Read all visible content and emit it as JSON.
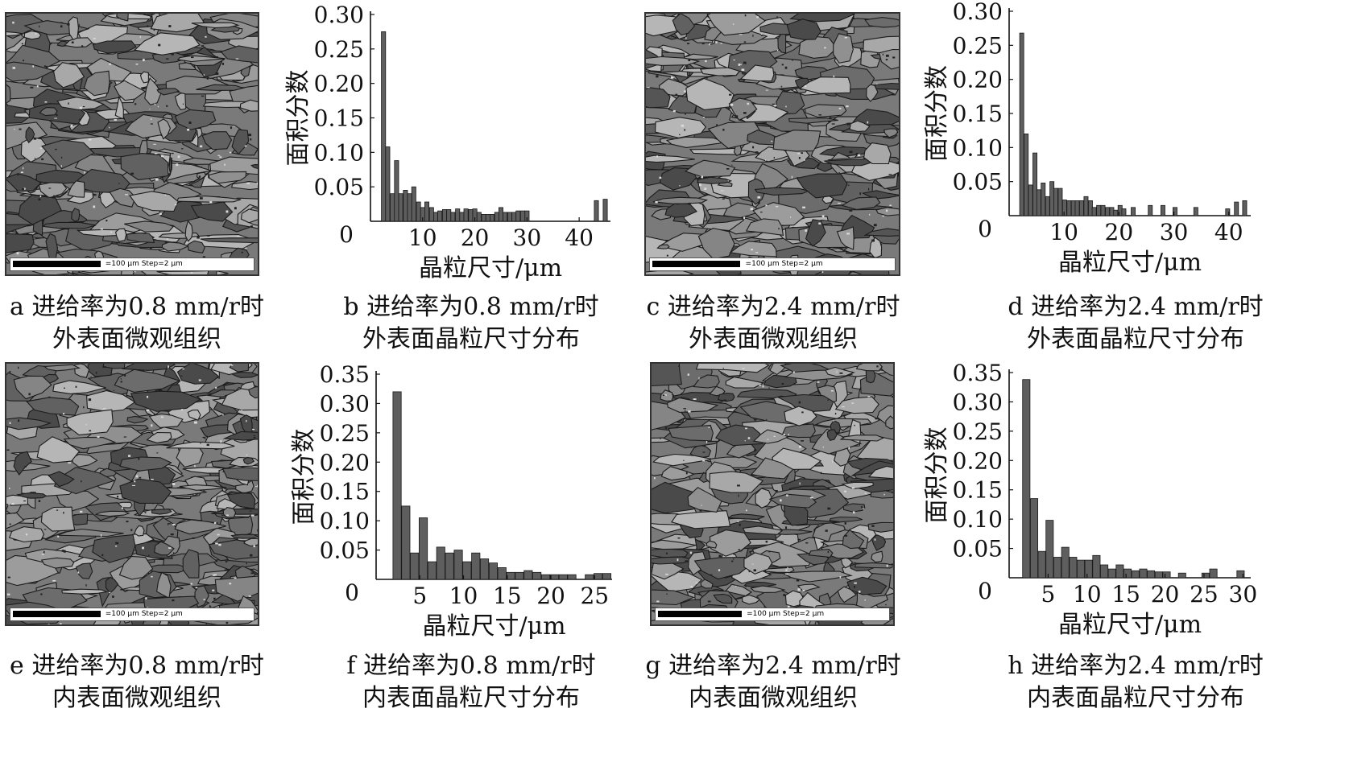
{
  "panels": [
    {
      "id": "a",
      "kind": "micro",
      "scale_text": "=100 μm Step=2 μm",
      "caption": [
        "a 进给率为0.8 mm/r时",
        "外表面微观组织"
      ]
    },
    {
      "id": "b",
      "kind": "chart",
      "caption": [
        "b 进给率为0.8 mm/r时",
        "外表面晶粒尺寸分布"
      ]
    },
    {
      "id": "c",
      "kind": "micro",
      "scale_text": "=100 μm Step=2 μm",
      "caption": [
        "c 进给率为2.4 mm/r时",
        "外表面微观组织"
      ]
    },
    {
      "id": "d",
      "kind": "chart",
      "caption": [
        "d 进给率为2.4 mm/r时",
        "外表面晶粒尺寸分布"
      ]
    },
    {
      "id": "e",
      "kind": "micro",
      "scale_text": "=100 μm Step=2 μm",
      "caption": [
        "e 进给率为0.8 mm/r时",
        "内表面微观组织"
      ]
    },
    {
      "id": "f",
      "kind": "chart",
      "caption": [
        "f 进给率为0.8 mm/r时",
        "内表面晶粒尺寸分布"
      ]
    },
    {
      "id": "g",
      "kind": "micro",
      "scale_text": "=100 μm Step=2 μm",
      "caption": [
        "g 进给率为2.4 mm/r时",
        "内表面微观组织"
      ]
    },
    {
      "id": "h",
      "kind": "chart",
      "caption": [
        "h 进给率为2.4 mm/r时",
        "内表面晶粒尺寸分布"
      ]
    }
  ],
  "chart_data": [
    {
      "id": "b",
      "type": "bar",
      "xlabel": "晶粒尺寸/μm",
      "ylabel": "面积分数",
      "xlim": [
        0,
        46
      ],
      "ylim": [
        0,
        0.3
      ],
      "xticks": [
        10,
        20,
        30,
        40
      ],
      "yticks": [
        0.05,
        0.1,
        0.15,
        0.2,
        0.25,
        0.3
      ],
      "origin_label": "0",
      "bin_width": 0.8,
      "x": [
        2.5,
        3.3,
        4.2,
        5.0,
        5.8,
        6.7,
        7.5,
        8.3,
        9.2,
        10.0,
        10.8,
        11.7,
        12.5,
        13.3,
        14.2,
        15.0,
        15.8,
        16.7,
        17.5,
        18.3,
        19.2,
        20.0,
        20.8,
        21.7,
        22.5,
        23.3,
        24.2,
        25.0,
        25.8,
        26.7,
        27.5,
        28.3,
        29.2,
        30.0,
        43.3,
        45.0
      ],
      "values": [
        0.275,
        0.108,
        0.04,
        0.088,
        0.04,
        0.045,
        0.04,
        0.05,
        0.028,
        0.02,
        0.028,
        0.02,
        0.013,
        0.015,
        0.017,
        0.017,
        0.013,
        0.018,
        0.013,
        0.018,
        0.017,
        0.018,
        0.013,
        0.01,
        0.01,
        0.01,
        0.013,
        0.02,
        0.013,
        0.013,
        0.013,
        0.015,
        0.015,
        0.015,
        0.03,
        0.032
      ]
    },
    {
      "id": "d",
      "type": "bar",
      "xlabel": "晶粒尺寸/μm",
      "ylabel": "面积分数",
      "xlim": [
        0,
        44
      ],
      "ylim": [
        0,
        0.3
      ],
      "xticks": [
        10,
        20,
        30,
        40
      ],
      "yticks": [
        0.05,
        0.1,
        0.15,
        0.2,
        0.25,
        0.3
      ],
      "origin_label": "0",
      "bin_width": 0.75,
      "x": [
        2.3,
        3.1,
        3.9,
        4.7,
        5.4,
        6.2,
        7.0,
        7.8,
        8.5,
        9.3,
        10.1,
        10.9,
        11.7,
        12.4,
        13.2,
        14.0,
        14.8,
        15.5,
        16.3,
        17.1,
        17.9,
        18.7,
        19.4,
        20.2,
        20.9,
        22.6,
        25.7,
        28.0,
        30.2,
        34.0,
        39.8,
        41.4,
        42.9
      ],
      "values": [
        0.268,
        0.12,
        0.045,
        0.092,
        0.038,
        0.048,
        0.028,
        0.05,
        0.04,
        0.04,
        0.023,
        0.022,
        0.022,
        0.022,
        0.022,
        0.028,
        0.022,
        0.012,
        0.015,
        0.015,
        0.012,
        0.012,
        0.008,
        0.015,
        0.01,
        0.012,
        0.015,
        0.015,
        0.012,
        0.012,
        0.01,
        0.02,
        0.022
      ]
    },
    {
      "id": "f",
      "type": "bar",
      "xlabel": "晶粒尺寸/μm",
      "ylabel": "面积分数",
      "xlim": [
        0,
        27
      ],
      "ylim": [
        0,
        0.35
      ],
      "xticks": [
        5,
        10,
        15,
        20,
        25
      ],
      "yticks": [
        0.05,
        0.1,
        0.15,
        0.2,
        0.25,
        0.3,
        0.35
      ],
      "origin_label": "0",
      "bin_width": 0.95,
      "x": [
        2.4,
        3.4,
        4.4,
        5.4,
        6.4,
        7.4,
        8.4,
        9.4,
        10.4,
        11.4,
        12.4,
        13.4,
        14.4,
        15.4,
        16.4,
        17.4,
        18.4,
        19.4,
        20.4,
        21.4,
        22.4,
        24.4,
        25.4,
        26.4
      ],
      "values": [
        0.32,
        0.125,
        0.045,
        0.105,
        0.03,
        0.055,
        0.045,
        0.05,
        0.03,
        0.045,
        0.035,
        0.028,
        0.02,
        0.012,
        0.012,
        0.015,
        0.012,
        0.008,
        0.008,
        0.008,
        0.008,
        0.008,
        0.01,
        0.01
      ]
    },
    {
      "id": "h",
      "type": "bar",
      "xlabel": "晶粒尺寸/μm",
      "ylabel": "面积分数",
      "xlim": [
        0,
        31
      ],
      "ylim": [
        0,
        0.35
      ],
      "xticks": [
        5,
        10,
        15,
        20,
        25,
        30
      ],
      "yticks": [
        0.05,
        0.1,
        0.15,
        0.2,
        0.25,
        0.3,
        0.35
      ],
      "origin_label": "0",
      "bin_width": 0.95,
      "x": [
        2.2,
        3.2,
        4.2,
        5.2,
        6.2,
        7.2,
        8.2,
        9.2,
        10.2,
        11.2,
        12.2,
        13.2,
        14.2,
        15.2,
        16.2,
        17.2,
        18.2,
        19.2,
        20.2,
        22.2,
        25.2,
        26.2,
        29.7
      ],
      "values": [
        0.338,
        0.135,
        0.045,
        0.098,
        0.035,
        0.052,
        0.035,
        0.03,
        0.03,
        0.038,
        0.022,
        0.015,
        0.022,
        0.015,
        0.012,
        0.015,
        0.012,
        0.01,
        0.01,
        0.008,
        0.008,
        0.015,
        0.012
      ]
    }
  ],
  "colors": {
    "bar_fill": "#5e5e5e",
    "bar_stroke": "#1a1a1a",
    "axis": "#111111"
  }
}
